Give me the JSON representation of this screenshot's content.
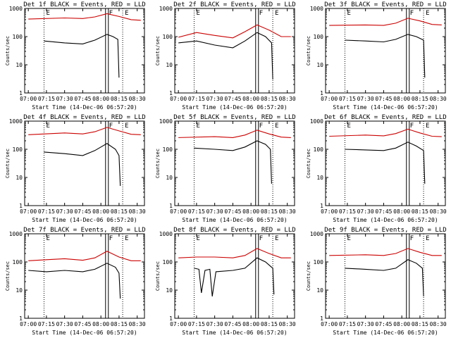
{
  "page": {
    "layout": "3x3 grid"
  },
  "chart_data": [
    {
      "type": "line",
      "title": "Det 1f BLACK = Events, RED = LLD",
      "xlabel": "Start Time (14-Dec-06 06:57:20)",
      "ylabel": "Counts/sec",
      "yscale": "log",
      "ylim": [
        1,
        1000
      ],
      "xtick_labels": [
        "07:00",
        "07:15",
        "07:30",
        "07:45",
        "08:00",
        "08:15",
        "08:30"
      ],
      "ytick_labels": [
        "1",
        "10",
        "100",
        "1000"
      ],
      "markers": [
        {
          "label": "E",
          "time": "07:13"
        },
        {
          "label": "F",
          "time": "08:05"
        },
        {
          "label": "E",
          "time": "08:18"
        }
      ],
      "series": [
        {
          "name": "Events",
          "color": "#000000",
          "x": [
            "07:13",
            "07:30",
            "07:45",
            "07:55",
            "08:05",
            "08:10",
            "08:14",
            "08:15"
          ],
          "values": [
            70,
            60,
            55,
            75,
            120,
            100,
            80,
            3.5
          ]
        },
        {
          "name": "LLD",
          "color": "#cc0000",
          "x": [
            "07:00",
            "07:30",
            "07:45",
            "07:55",
            "08:05",
            "08:15",
            "08:25",
            "08:33"
          ],
          "values": [
            420,
            460,
            440,
            500,
            650,
            520,
            400,
            380
          ]
        }
      ]
    },
    {
      "type": "line",
      "title": "Det 2f BLACK = Events, RED = LLD",
      "xlabel": "Start Time (14-Dec-06 06:57:20)",
      "ylabel": "Counts/sec",
      "yscale": "log",
      "ylim": [
        1,
        1000
      ],
      "xtick_labels": [
        "07:00",
        "07:15",
        "07:30",
        "07:45",
        "08:00",
        "08:15",
        "08:30"
      ],
      "ytick_labels": [
        "1",
        "10",
        "100",
        "1000"
      ],
      "markers": [
        {
          "label": "E",
          "time": "07:13"
        },
        {
          "label": "F",
          "time": "08:05"
        },
        {
          "label": "E",
          "time": "08:18"
        }
      ],
      "series": [
        {
          "name": "Events",
          "color": "#000000",
          "x": [
            "07:00",
            "07:15",
            "07:30",
            "07:45",
            "07:55",
            "08:05",
            "08:12",
            "08:17",
            "08:18"
          ],
          "values": [
            60,
            70,
            50,
            40,
            70,
            140,
            100,
            60,
            3
          ]
        },
        {
          "name": "LLD",
          "color": "#cc0000",
          "x": [
            "07:00",
            "07:15",
            "07:30",
            "07:45",
            "07:55",
            "08:05",
            "08:15",
            "08:25",
            "08:33"
          ],
          "values": [
            95,
            140,
            110,
            90,
            150,
            260,
            170,
            100,
            100
          ]
        }
      ]
    },
    {
      "type": "line",
      "title": "Det 3f BLACK = Events, RED = LLD",
      "xlabel": "Start Time (14-Dec-06 06:57:20)",
      "ylabel": "Counts/sec",
      "yscale": "log",
      "ylim": [
        1,
        1000
      ],
      "xtick_labels": [
        "07:00",
        "07:15",
        "07:30",
        "07:45",
        "08:00",
        "08:15",
        "08:30"
      ],
      "ytick_labels": [
        "1",
        "10",
        "100",
        "1000"
      ],
      "markers": [
        {
          "label": "E",
          "time": "07:13"
        },
        {
          "label": "F",
          "time": "08:05"
        },
        {
          "label": "E",
          "time": "08:18"
        }
      ],
      "series": [
        {
          "name": "Events",
          "color": "#000000",
          "x": [
            "07:13",
            "07:30",
            "07:45",
            "07:55",
            "08:05",
            "08:12",
            "08:18",
            "08:19"
          ],
          "values": [
            75,
            70,
            65,
            80,
            120,
            100,
            75,
            3.5
          ]
        },
        {
          "name": "LLD",
          "color": "#cc0000",
          "x": [
            "07:00",
            "07:30",
            "07:45",
            "07:55",
            "08:05",
            "08:15",
            "08:25",
            "08:33"
          ],
          "values": [
            250,
            260,
            250,
            300,
            450,
            360,
            270,
            260
          ]
        }
      ]
    },
    {
      "type": "line",
      "title": "Det 4f BLACK = Events, RED = LLD",
      "xlabel": "Start Time (14-Dec-06 06:57:20)",
      "ylabel": "Counts/sec",
      "yscale": "log",
      "ylim": [
        1,
        1000
      ],
      "xtick_labels": [
        "07:00",
        "07:15",
        "07:30",
        "07:45",
        "08:00",
        "08:15",
        "08:30"
      ],
      "ytick_labels": [
        "1",
        "10",
        "100",
        "1000"
      ],
      "markers": [
        {
          "label": "E",
          "time": "07:13"
        },
        {
          "label": "F",
          "time": "08:05"
        },
        {
          "label": "E",
          "time": "08:18"
        }
      ],
      "series": [
        {
          "name": "Events",
          "color": "#000000",
          "x": [
            "07:13",
            "07:30",
            "07:45",
            "07:55",
            "08:05",
            "08:12",
            "08:15",
            "08:16"
          ],
          "values": [
            80,
            70,
            60,
            90,
            160,
            100,
            60,
            5
          ]
        },
        {
          "name": "LLD",
          "color": "#cc0000",
          "x": [
            "07:00",
            "07:30",
            "07:45",
            "07:55",
            "08:05",
            "08:15",
            "08:25",
            "08:33"
          ],
          "values": [
            330,
            380,
            350,
            420,
            600,
            450,
            340,
            330
          ]
        }
      ]
    },
    {
      "type": "line",
      "title": "Det 5f BLACK = Events, RED = LLD",
      "xlabel": "Start Time (14-Dec-06 06:57:20)",
      "ylabel": "Counts/sec",
      "yscale": "log",
      "ylim": [
        1,
        1000
      ],
      "xtick_labels": [
        "07:00",
        "07:15",
        "07:30",
        "07:45",
        "08:00",
        "08:15",
        "08:30"
      ],
      "ytick_labels": [
        "1",
        "10",
        "100",
        "1000"
      ],
      "markers": [
        {
          "label": "E",
          "time": "07:13"
        },
        {
          "label": "F",
          "time": "08:05"
        },
        {
          "label": "E",
          "time": "08:18"
        }
      ],
      "series": [
        {
          "name": "Events",
          "color": "#000000",
          "x": [
            "07:13",
            "07:30",
            "07:45",
            "07:55",
            "08:05",
            "08:12",
            "08:16",
            "08:17"
          ],
          "values": [
            110,
            100,
            90,
            120,
            200,
            150,
            100,
            6
          ]
        },
        {
          "name": "LLD",
          "color": "#cc0000",
          "x": [
            "07:00",
            "07:30",
            "07:45",
            "07:55",
            "08:05",
            "08:15",
            "08:25",
            "08:33"
          ],
          "values": [
            260,
            280,
            260,
            320,
            480,
            350,
            270,
            260
          ]
        }
      ]
    },
    {
      "type": "line",
      "title": "Det 6f BLACK = Events, RED = LLD",
      "xlabel": "Start Time (14-Dec-06 06:57:20)",
      "ylabel": "Counts/sec",
      "yscale": "log",
      "ylim": [
        1,
        1000
      ],
      "xtick_labels": [
        "07:00",
        "07:15",
        "07:30",
        "07:45",
        "08:00",
        "08:15",
        "08:30"
      ],
      "ytick_labels": [
        "1",
        "10",
        "100",
        "1000"
      ],
      "markers": [
        {
          "label": "E",
          "time": "07:13"
        },
        {
          "label": "F",
          "time": "08:05"
        },
        {
          "label": "E",
          "time": "08:18"
        }
      ],
      "series": [
        {
          "name": "Events",
          "color": "#000000",
          "x": [
            "07:13",
            "07:30",
            "07:45",
            "07:55",
            "08:05",
            "08:12",
            "08:18",
            "08:19"
          ],
          "values": [
            100,
            95,
            90,
            110,
            180,
            130,
            90,
            6
          ]
        },
        {
          "name": "LLD",
          "color": "#cc0000",
          "x": [
            "07:00",
            "07:30",
            "07:45",
            "07:55",
            "08:05",
            "08:15",
            "08:25",
            "08:33"
          ],
          "values": [
            290,
            320,
            300,
            360,
            520,
            380,
            290,
            280
          ]
        }
      ]
    },
    {
      "type": "line",
      "title": "Det 7f BLACK = Events, RED = LLD",
      "xlabel": "Start Time (14-Dec-06 06:57:20)",
      "ylabel": "Counts/sec",
      "yscale": "log",
      "ylim": [
        1,
        1000
      ],
      "xtick_labels": [
        "07:00",
        "07:15",
        "07:30",
        "07:45",
        "08:00",
        "08:15",
        "08:30"
      ],
      "ytick_labels": [
        "1",
        "10",
        "100",
        "1000"
      ],
      "markers": [
        {
          "label": "E",
          "time": "07:13"
        },
        {
          "label": "F",
          "time": "08:05"
        },
        {
          "label": "E",
          "time": "08:18"
        }
      ],
      "series": [
        {
          "name": "Events",
          "color": "#000000",
          "x": [
            "07:00",
            "07:15",
            "07:30",
            "07:45",
            "07:55",
            "08:05",
            "08:12",
            "08:15",
            "08:16"
          ],
          "values": [
            50,
            45,
            50,
            45,
            55,
            90,
            65,
            40,
            5
          ]
        },
        {
          "name": "LLD",
          "color": "#cc0000",
          "x": [
            "07:00",
            "07:15",
            "07:30",
            "07:45",
            "07:55",
            "08:05",
            "08:15",
            "08:25",
            "08:33"
          ],
          "values": [
            110,
            120,
            130,
            115,
            140,
            240,
            150,
            110,
            110
          ]
        }
      ]
    },
    {
      "type": "line",
      "title": "Det 8f BLACK = Events, RED = LLD",
      "xlabel": "Start Time (14-Dec-06 06:57:20)",
      "ylabel": "Counts/sec",
      "yscale": "log",
      "ylim": [
        1,
        1000
      ],
      "xtick_labels": [
        "07:00",
        "07:15",
        "07:30",
        "07:45",
        "08:00",
        "08:15",
        "08:30"
      ],
      "ytick_labels": [
        "1",
        "10",
        "100",
        "1000"
      ],
      "markers": [
        {
          "label": "E",
          "time": "07:13"
        },
        {
          "label": "F",
          "time": "08:05"
        },
        {
          "label": "E",
          "time": "08:18"
        }
      ],
      "series": [
        {
          "name": "Events",
          "color": "#000000",
          "x": [
            "07:13",
            "07:17",
            "07:19",
            "07:22",
            "07:26",
            "07:28",
            "07:31",
            "07:45",
            "07:55",
            "08:05",
            "08:12",
            "08:18",
            "08:19"
          ],
          "values": [
            60,
            55,
            8,
            50,
            55,
            6,
            45,
            50,
            60,
            140,
            100,
            60,
            7
          ]
        },
        {
          "name": "LLD",
          "color": "#cc0000",
          "x": [
            "07:00",
            "07:15",
            "07:30",
            "07:45",
            "07:55",
            "08:05",
            "08:15",
            "08:25",
            "08:33"
          ],
          "values": [
            140,
            150,
            150,
            140,
            170,
            300,
            200,
            140,
            140
          ]
        }
      ]
    },
    {
      "type": "line",
      "title": "Det 9f BLACK = Events, RED = LLD",
      "xlabel": "Start Time (14-Dec-06 06:57:20)",
      "ylabel": "Counts/sec",
      "yscale": "log",
      "ylim": [
        1,
        1000
      ],
      "xtick_labels": [
        "07:00",
        "07:15",
        "07:30",
        "07:45",
        "08:00",
        "08:15",
        "08:30"
      ],
      "ytick_labels": [
        "1",
        "10",
        "100",
        "1000"
      ],
      "markers": [
        {
          "label": "E",
          "time": "07:13"
        },
        {
          "label": "F",
          "time": "08:05"
        },
        {
          "label": "E",
          "time": "08:18"
        }
      ],
      "series": [
        {
          "name": "Events",
          "color": "#000000",
          "x": [
            "07:13",
            "07:30",
            "07:45",
            "07:55",
            "08:05",
            "08:12",
            "08:17",
            "08:18"
          ],
          "values": [
            60,
            55,
            50,
            60,
            120,
            90,
            60,
            6
          ]
        },
        {
          "name": "LLD",
          "color": "#cc0000",
          "x": [
            "07:00",
            "07:30",
            "07:45",
            "07:55",
            "08:05",
            "08:15",
            "08:25",
            "08:33"
          ],
          "values": [
            170,
            180,
            170,
            200,
            300,
            220,
            170,
            170
          ]
        }
      ]
    }
  ]
}
